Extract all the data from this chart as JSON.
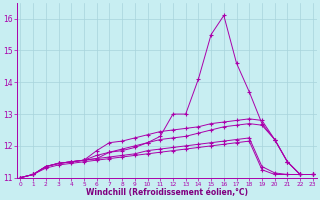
{
  "xlabel": "Windchill (Refroidissement éolien,°C)",
  "background_color": "#c8eef2",
  "grid_color": "#a8d4dc",
  "line_color": "#aa00aa",
  "x_min": 0,
  "x_max": 23,
  "y_min": 11.0,
  "y_max": 16.5,
  "yticks": [
    11,
    12,
    13,
    14,
    15,
    16
  ],
  "xticks": [
    0,
    1,
    2,
    3,
    4,
    5,
    6,
    7,
    8,
    9,
    10,
    11,
    12,
    13,
    14,
    15,
    16,
    17,
    18,
    19,
    20,
    21,
    22,
    23
  ],
  "lines": [
    {
      "x": [
        0,
        1,
        2,
        3,
        4,
        5,
        6,
        7,
        8,
        9,
        10,
        11,
        12,
        13,
        14,
        15,
        16,
        17,
        18,
        19,
        20,
        21,
        22,
        23
      ],
      "y": [
        11.0,
        11.1,
        11.35,
        11.45,
        11.5,
        11.55,
        11.6,
        11.8,
        11.9,
        12.0,
        12.1,
        12.3,
        13.0,
        13.0,
        14.1,
        15.5,
        16.1,
        14.6,
        13.7,
        12.7,
        12.2,
        11.5,
        11.1,
        11.1
      ]
    },
    {
      "x": [
        0,
        1,
        2,
        3,
        4,
        5,
        6,
        7,
        8,
        9,
        10,
        11,
        12,
        13,
        14,
        15,
        16,
        17,
        18,
        19,
        20,
        21,
        22,
        23
      ],
      "y": [
        11.0,
        11.1,
        11.35,
        11.45,
        11.5,
        11.55,
        11.85,
        12.1,
        12.15,
        12.25,
        12.35,
        12.45,
        12.5,
        12.55,
        12.6,
        12.7,
        12.75,
        12.8,
        12.85,
        12.8,
        12.2,
        11.5,
        11.1,
        11.1
      ]
    },
    {
      "x": [
        0,
        1,
        2,
        3,
        4,
        5,
        6,
        7,
        8,
        9,
        10,
        11,
        12,
        13,
        14,
        15,
        16,
        17,
        18,
        19,
        20,
        21,
        22,
        23
      ],
      "y": [
        11.0,
        11.1,
        11.35,
        11.45,
        11.5,
        11.55,
        11.7,
        11.8,
        11.85,
        11.95,
        12.1,
        12.2,
        12.25,
        12.3,
        12.4,
        12.5,
        12.6,
        12.65,
        12.7,
        12.65,
        12.2,
        11.5,
        11.1,
        11.1
      ]
    },
    {
      "x": [
        0,
        1,
        2,
        3,
        4,
        5,
        6,
        7,
        8,
        9,
        10,
        11,
        12,
        13,
        14,
        15,
        16,
        17,
        18,
        19,
        20,
        21,
        22,
        23
      ],
      "y": [
        11.0,
        11.1,
        11.35,
        11.45,
        11.5,
        11.55,
        11.6,
        11.65,
        11.7,
        11.75,
        11.85,
        11.9,
        11.95,
        12.0,
        12.05,
        12.1,
        12.15,
        12.2,
        12.25,
        11.35,
        11.15,
        11.1,
        11.1,
        11.1
      ]
    },
    {
      "x": [
        0,
        1,
        2,
        3,
        4,
        5,
        6,
        7,
        8,
        9,
        10,
        11,
        12,
        13,
        14,
        15,
        16,
        17,
        18,
        19,
        20,
        21,
        22,
        23
      ],
      "y": [
        11.0,
        11.1,
        11.3,
        11.4,
        11.45,
        11.5,
        11.55,
        11.6,
        11.65,
        11.7,
        11.75,
        11.8,
        11.85,
        11.9,
        11.95,
        12.0,
        12.05,
        12.1,
        12.15,
        11.25,
        11.1,
        11.1,
        11.1,
        11.1
      ]
    }
  ]
}
